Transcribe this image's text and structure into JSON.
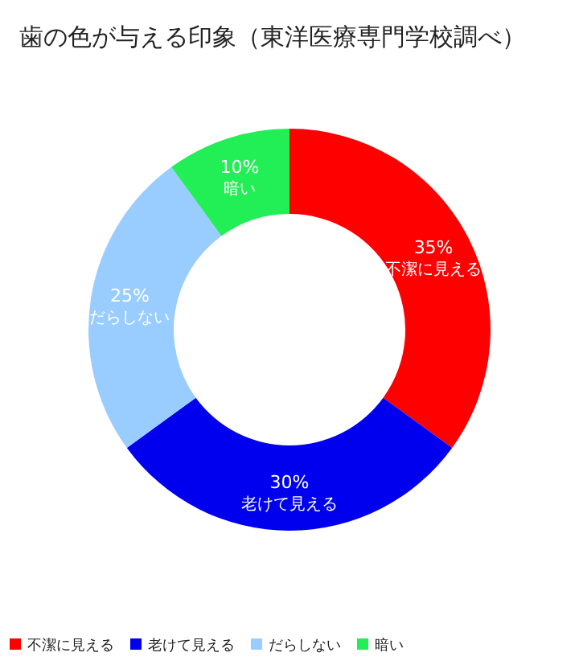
{
  "chart_data": {
    "type": "donut",
    "title": "歯の色が与える印象（東洋医療専門学校調べ）",
    "categories": [
      "不潔に見える",
      "老けて見える",
      "だらしない",
      "暗い"
    ],
    "values": [
      35,
      30,
      25,
      10
    ],
    "colors": [
      "#ff0000",
      "#0000ee",
      "#99ccff",
      "#22ee55"
    ],
    "value_labels": [
      "35%",
      "30%",
      "25%",
      "10%"
    ],
    "legend": "bottom"
  }
}
